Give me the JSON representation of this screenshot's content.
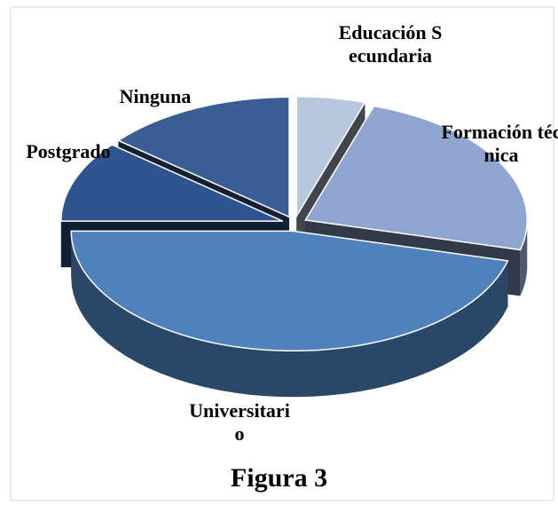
{
  "chart_data": {
    "type": "pie3d",
    "title": "Figura 3",
    "categories": [
      "Educación Secundaria",
      "Formación técnica",
      "Universitario",
      "Postgrado",
      "Ninguna"
    ],
    "values": [
      5,
      24,
      46,
      11,
      14
    ],
    "colors": [
      "#b9c7de",
      "#8fa4cf",
      "#4f81bd",
      "#2e5590",
      "#3a5e93"
    ]
  }
}
